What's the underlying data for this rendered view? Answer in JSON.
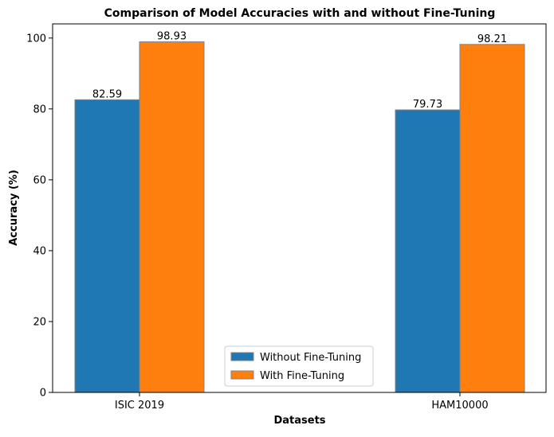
{
  "chart_data": {
    "type": "bar",
    "title": "Comparison of Model Accuracies with and without Fine-Tuning",
    "xlabel": "Datasets",
    "ylabel": "Accuracy (%)",
    "categories": [
      "ISIC 2019",
      "HAM10000"
    ],
    "series": [
      {
        "name": "Without Fine-Tuning",
        "values": [
          82.59,
          79.73
        ],
        "color": "#1f77b4"
      },
      {
        "name": "With Fine-Tuning",
        "values": [
          98.93,
          98.21
        ],
        "color": "#ff7f0e"
      }
    ],
    "data_labels": [
      [
        "82.59",
        "79.73"
      ],
      [
        "98.93",
        "98.21"
      ]
    ],
    "ylim": [
      0,
      104
    ],
    "yticks": [
      0,
      20,
      40,
      60,
      80,
      100
    ],
    "ytick_labels": [
      "0",
      "20",
      "40",
      "60",
      "80",
      "100"
    ],
    "grid": false,
    "legend_position": "lower center",
    "bar_edge_color": "#808080"
  }
}
